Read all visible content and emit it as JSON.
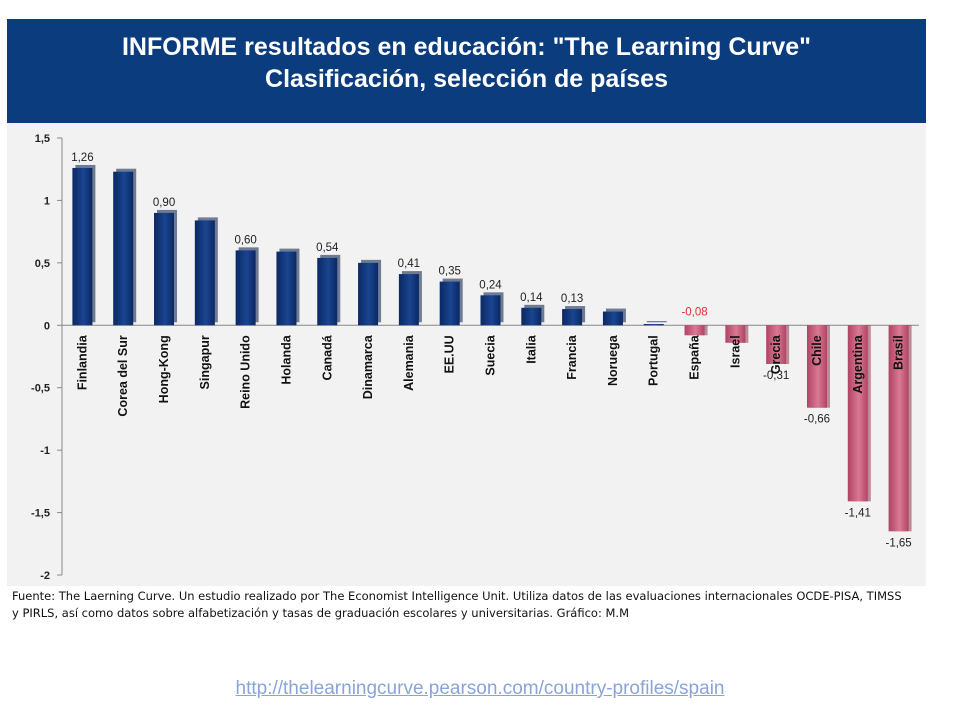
{
  "header": {
    "line1": "INFORME resultados en educación:  \"The Learning Curve\"",
    "line2": "Clasificación, selección de países"
  },
  "footer": {
    "source": "Fuente: The Laerning Curve. Un estudio realizado por The Economist Intelligence Unit. Utiliza datos de las evaluaciones internacionales OCDE-PISA, TIMSS y PIRLS, así como datos sobre alfabetización y tasas de graduación escolares y universitarias. Gráfico: M.M",
    "link": "http://thelearningcurve.pearson.com/country-profiles/spain"
  },
  "colors": {
    "header_bg": "#0b3c7d",
    "positive_bar": "#0d2e6e",
    "negative_bar": "#c0506e",
    "highlight_label": "#e03030",
    "link": "#8aa4d6"
  },
  "chart_data": {
    "type": "bar",
    "title": "",
    "xlabel": "",
    "ylabel": "",
    "ylim": [
      -2,
      1.5
    ],
    "yticks": [
      1.5,
      1,
      0.5,
      0,
      -0.5,
      -1,
      -1.5,
      -2
    ],
    "ytick_labels": [
      "1,5",
      "1",
      "0,5",
      "0",
      "-0,5",
      "-1",
      "-1,5",
      "-2"
    ],
    "grid": false,
    "categories": [
      "Finlandia",
      "Corea del Sur",
      "Hong-Kong",
      "Singapur",
      "Reino Unido",
      "Holanda",
      "Canadá",
      "Dinamarca",
      "Alemania",
      "EE.UU",
      "Suecia",
      "Italia",
      "Francia",
      "Noruega",
      "Portugal",
      "España",
      "Israel",
      "Grecia",
      "Chile",
      "Argentina",
      "Brasil"
    ],
    "values": [
      1.26,
      1.23,
      0.9,
      0.84,
      0.6,
      0.59,
      0.54,
      0.5,
      0.41,
      0.35,
      0.24,
      0.14,
      0.13,
      0.11,
      0.01,
      -0.08,
      -0.14,
      -0.31,
      -0.66,
      -1.41,
      -1.65
    ],
    "data_labels": [
      "1,26",
      "",
      "0,90",
      "",
      "0,60",
      "",
      "0,54",
      "",
      "0,41",
      "0,35",
      "0,24",
      "0,14",
      "0,13",
      "",
      "",
      "-0,08",
      "",
      "-0,31",
      "-0,66",
      "-1,41",
      "-1,65"
    ],
    "highlight": "España"
  }
}
